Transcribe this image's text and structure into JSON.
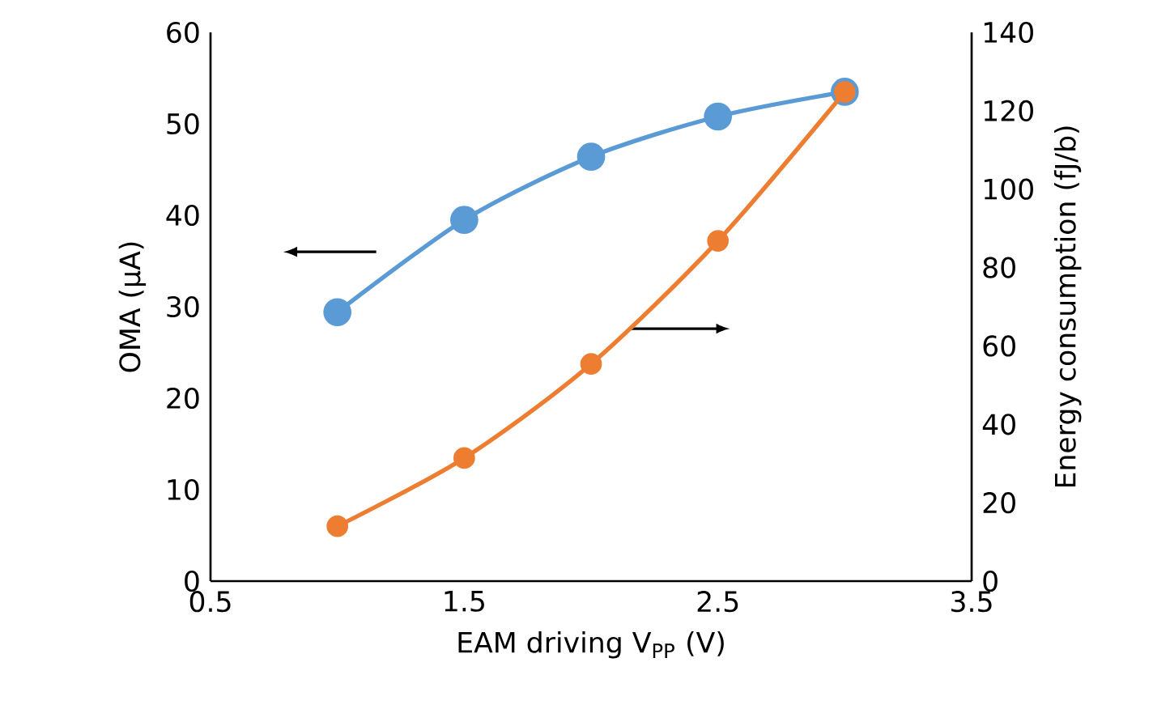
{
  "chart_data": {
    "type": "line",
    "xlabel": "EAM driving V$_{PP}$ (V)",
    "ylabel": "OMA (µA)",
    "y2label": "Energy consumption (fJ/b)",
    "x": [
      1,
      1.5,
      2,
      2.5,
      3
    ],
    "series": [
      {
        "color": "#5b9bd5",
        "values": [
          29.4,
          39.5,
          46.4,
          50.8,
          53.5
        ]
      },
      {
        "color": "#ed7d31",
        "axis": "y2",
        "values": [
          14,
          31.4,
          55.4,
          86.8,
          124.8
        ]
      }
    ],
    "xlim": [
      0.5,
      3.5
    ],
    "xticks": [
      0.5,
      1.5,
      2.5,
      3.5
    ],
    "ylim": [
      0,
      60
    ],
    "yticks": [
      0,
      10,
      20,
      30,
      40,
      50,
      60
    ],
    "y2lim": [
      0,
      140
    ],
    "y2ticks": [
      0,
      20,
      40,
      60,
      80,
      100,
      120,
      140
    ],
    "marker": "circle",
    "grid": false
  }
}
